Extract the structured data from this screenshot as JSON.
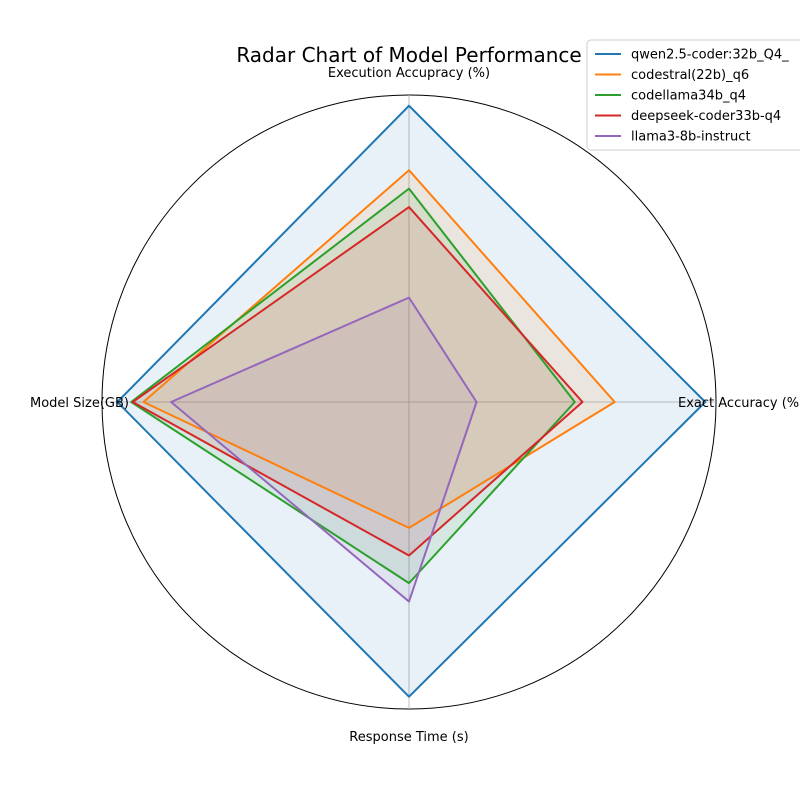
{
  "chart_data": {
    "type": "radar",
    "title": "Radar Chart of Model Performance",
    "axes": [
      "Execution Accupracy (%)",
      "Exact Accuracy (%)",
      "Response Time (s)",
      "Model Size(GB)"
    ],
    "value_range": [
      0,
      1
    ],
    "grid": true,
    "legend_position": "top-right",
    "series": [
      {
        "name": "qwen2.5-coder:32b_Q4_",
        "color": "#1f77b4",
        "values": [
          0.965,
          0.965,
          0.96,
          0.95
        ],
        "fill_opacity": 0.1
      },
      {
        "name": "codestral(22b)_q6",
        "color": "#ff7f0e",
        "values": [
          0.755,
          0.67,
          0.41,
          0.865
        ],
        "fill_opacity": 0.1
      },
      {
        "name": "codellama34b_q4",
        "color": "#2ca02c",
        "values": [
          0.695,
          0.54,
          0.59,
          0.905
        ],
        "fill_opacity": 0.1
      },
      {
        "name": "deepseek-coder33b-q4",
        "color": "#d62728",
        "values": [
          0.635,
          0.565,
          0.5,
          0.9
        ],
        "fill_opacity": 0.1
      },
      {
        "name": "llama3-8b-instruct",
        "color": "#9467bd",
        "values": [
          0.34,
          0.22,
          0.65,
          0.775
        ],
        "fill_opacity": 0.1
      }
    ]
  }
}
